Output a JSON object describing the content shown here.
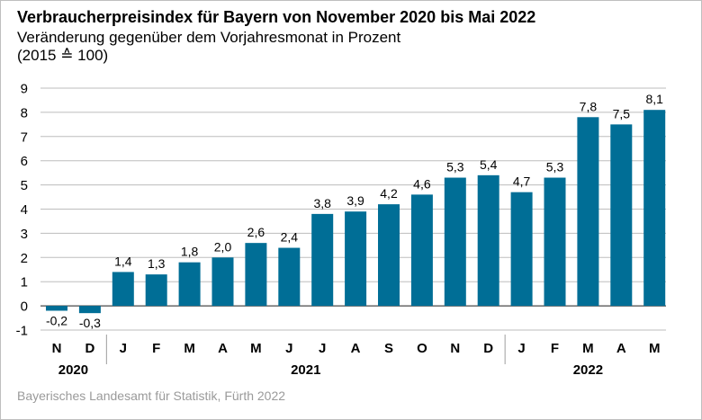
{
  "chart_data": {
    "type": "bar",
    "title": "Verbraucherpreisindex für Bayern von November 2020 bis Mai 2022",
    "subtitle": "Veränderung gegenüber dem Vorjahresmonat in Prozent",
    "basis": "(2015 ≙ 100)",
    "categories": [
      "N",
      "D",
      "J",
      "F",
      "M",
      "A",
      "M",
      "J",
      "J",
      "A",
      "S",
      "O",
      "N",
      "D",
      "J",
      "F",
      "M",
      "A",
      "M"
    ],
    "values": [
      -0.2,
      -0.3,
      1.4,
      1.3,
      1.8,
      2.0,
      2.6,
      2.4,
      3.8,
      3.9,
      4.2,
      4.6,
      5.3,
      5.4,
      4.7,
      5.3,
      7.8,
      7.5,
      8.1
    ],
    "value_labels": [
      "-0,2",
      "-0,3",
      "1,4",
      "1,3",
      "1,8",
      "2,0",
      "2,6",
      "2,4",
      "3,8",
      "3,9",
      "4,2",
      "4,6",
      "5,3",
      "5,4",
      "4,7",
      "5,3",
      "7,8",
      "7,5",
      "8,1"
    ],
    "year_groups": [
      {
        "label": "2020",
        "start": 0,
        "end": 1
      },
      {
        "label": "2021",
        "start": 2,
        "end": 13
      },
      {
        "label": "2022",
        "start": 14,
        "end": 18
      }
    ],
    "ylim": [
      -1,
      9
    ],
    "yticks": [
      -1,
      0,
      1,
      2,
      3,
      4,
      5,
      6,
      7,
      8,
      9
    ],
    "grid": true,
    "bar_color": "#006e96",
    "grid_color": "#bdbdbd"
  },
  "source": "Bayerisches Landesamt für Statistik, Fürth 2022"
}
